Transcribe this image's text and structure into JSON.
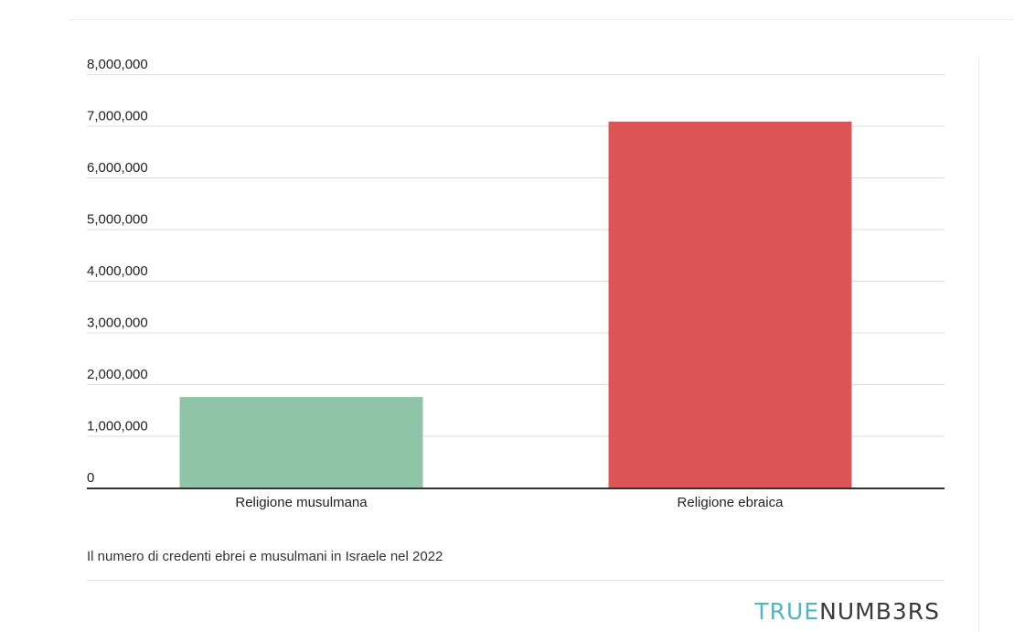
{
  "chart_data": {
    "type": "bar",
    "categories": [
      "Religione musulmana",
      "Religione ebraica"
    ],
    "values": [
      1750000,
      7080000
    ],
    "colors": [
      "#8fc4a8",
      "#dc5456"
    ],
    "ylim": [
      0,
      8000000
    ],
    "yticks": [
      0,
      1000000,
      2000000,
      3000000,
      4000000,
      5000000,
      6000000,
      7000000,
      8000000
    ],
    "ytick_labels": [
      "0",
      "1,000,000",
      "2,000,000",
      "3,000,000",
      "4,000,000",
      "5,000,000",
      "6,000,000",
      "7,000,000",
      "8,000,000"
    ],
    "grid": true,
    "legend": "none"
  },
  "caption": "Il numero di credenti ebrei e musulmani in Israele nel 2022",
  "brand": {
    "part_a": "TRUE",
    "part_b": "NUMB3RS",
    "color_a": "#4fb6c2",
    "color_b": "#3b3b3b"
  }
}
